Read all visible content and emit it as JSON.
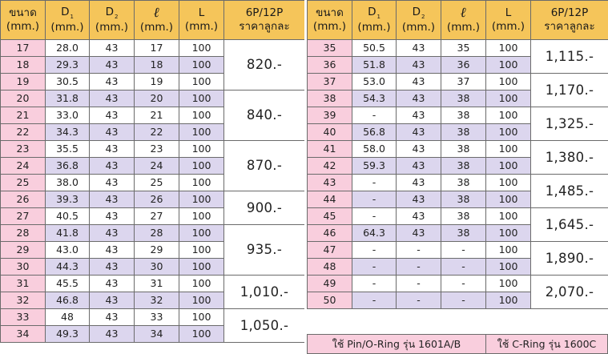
{
  "headers": {
    "size": "ขนาด",
    "size_unit": "(mm.)",
    "d1": "D",
    "d1_sub": "1",
    "d1_unit": "(mm.)",
    "d2": "D",
    "d2_sub": "2",
    "d2_unit": "(mm.)",
    "ell": "ℓ",
    "ell_unit": "(mm.)",
    "L": "L",
    "L_unit": "(mm.)",
    "price": "6P/12P",
    "price_sub": "ราคาลูกละ"
  },
  "left": {
    "rows": [
      {
        "size": "17",
        "d1": "28.0",
        "d2": "43",
        "ell": "17",
        "L": "100"
      },
      {
        "size": "18",
        "d1": "29.3",
        "d2": "43",
        "ell": "18",
        "L": "100"
      },
      {
        "size": "19",
        "d1": "30.5",
        "d2": "43",
        "ell": "19",
        "L": "100"
      },
      {
        "size": "20",
        "d1": "31.8",
        "d2": "43",
        "ell": "20",
        "L": "100"
      },
      {
        "size": "21",
        "d1": "33.0",
        "d2": "43",
        "ell": "21",
        "L": "100"
      },
      {
        "size": "22",
        "d1": "34.3",
        "d2": "43",
        "ell": "22",
        "L": "100"
      },
      {
        "size": "23",
        "d1": "35.5",
        "d2": "43",
        "ell": "23",
        "L": "100"
      },
      {
        "size": "24",
        "d1": "36.8",
        "d2": "43",
        "ell": "24",
        "L": "100"
      },
      {
        "size": "25",
        "d1": "38.0",
        "d2": "43",
        "ell": "25",
        "L": "100"
      },
      {
        "size": "26",
        "d1": "39.3",
        "d2": "43",
        "ell": "26",
        "L": "100"
      },
      {
        "size": "27",
        "d1": "40.5",
        "d2": "43",
        "ell": "27",
        "L": "100"
      },
      {
        "size": "28",
        "d1": "41.8",
        "d2": "43",
        "ell": "28",
        "L": "100"
      },
      {
        "size": "29",
        "d1": "43.0",
        "d2": "43",
        "ell": "29",
        "L": "100"
      },
      {
        "size": "30",
        "d1": "44.3",
        "d2": "43",
        "ell": "30",
        "L": "100"
      },
      {
        "size": "31",
        "d1": "45.5",
        "d2": "43",
        "ell": "31",
        "L": "100"
      },
      {
        "size": "32",
        "d1": "46.8",
        "d2": "43",
        "ell": "32",
        "L": "100"
      },
      {
        "size": "33",
        "d1": "48",
        "d2": "43",
        "ell": "33",
        "L": "100"
      },
      {
        "size": "34",
        "d1": "49.3",
        "d2": "43",
        "ell": "34",
        "L": "100"
      }
    ],
    "prices": [
      {
        "label": "820.-",
        "span": 3
      },
      {
        "label": "840.-",
        "span": 3
      },
      {
        "label": "870.-",
        "span": 3
      },
      {
        "label": "900.-",
        "span": 2
      },
      {
        "label": "935.-",
        "span": 3
      },
      {
        "label": "1,010.-",
        "span": 2
      },
      {
        "label": "1,050.-",
        "span": 2
      }
    ]
  },
  "right": {
    "rows": [
      {
        "size": "35",
        "d1": "50.5",
        "d2": "43",
        "ell": "35",
        "L": "100"
      },
      {
        "size": "36",
        "d1": "51.8",
        "d2": "43",
        "ell": "36",
        "L": "100"
      },
      {
        "size": "37",
        "d1": "53.0",
        "d2": "43",
        "ell": "37",
        "L": "100"
      },
      {
        "size": "38",
        "d1": "54.3",
        "d2": "43",
        "ell": "38",
        "L": "100"
      },
      {
        "size": "39",
        "d1": "-",
        "d2": "43",
        "ell": "38",
        "L": "100"
      },
      {
        "size": "40",
        "d1": "56.8",
        "d2": "43",
        "ell": "38",
        "L": "100"
      },
      {
        "size": "41",
        "d1": "58.0",
        "d2": "43",
        "ell": "38",
        "L": "100"
      },
      {
        "size": "42",
        "d1": "59.3",
        "d2": "43",
        "ell": "38",
        "L": "100"
      },
      {
        "size": "43",
        "d1": "-",
        "d2": "43",
        "ell": "38",
        "L": "100"
      },
      {
        "size": "44",
        "d1": "-",
        "d2": "43",
        "ell": "38",
        "L": "100"
      },
      {
        "size": "45",
        "d1": "-",
        "d2": "43",
        "ell": "38",
        "L": "100"
      },
      {
        "size": "46",
        "d1": "64.3",
        "d2": "43",
        "ell": "38",
        "L": "100"
      },
      {
        "size": "47",
        "d1": "-",
        "d2": "-",
        "ell": "-",
        "L": "100"
      },
      {
        "size": "48",
        "d1": "-",
        "d2": "-",
        "ell": "-",
        "L": "100"
      },
      {
        "size": "49",
        "d1": "-",
        "d2": "-",
        "ell": "-",
        "L": "100"
      },
      {
        "size": "50",
        "d1": "-",
        "d2": "-",
        "ell": "-",
        "L": "100"
      }
    ],
    "prices": [
      {
        "label": "1,115.-",
        "span": 2
      },
      {
        "label": "1,170.-",
        "span": 2
      },
      {
        "label": "1,325.-",
        "span": 2
      },
      {
        "label": "1,380.-",
        "span": 2
      },
      {
        "label": "1,485.-",
        "span": 2
      },
      {
        "label": "1,645.-",
        "span": 2
      },
      {
        "label": "1,890.-",
        "span": 2
      },
      {
        "label": "2,070.-",
        "span": 2
      }
    ]
  },
  "footer": {
    "note_pin": "ใช้ Pin/O-Ring รุ่น 1601A/B",
    "note_cring": "ใช้ C-Ring รุ่น 1600C"
  },
  "colors": {
    "header": "#f5c55a",
    "size_col": "#f9cedd",
    "alt_row": "#dcd6ee"
  }
}
